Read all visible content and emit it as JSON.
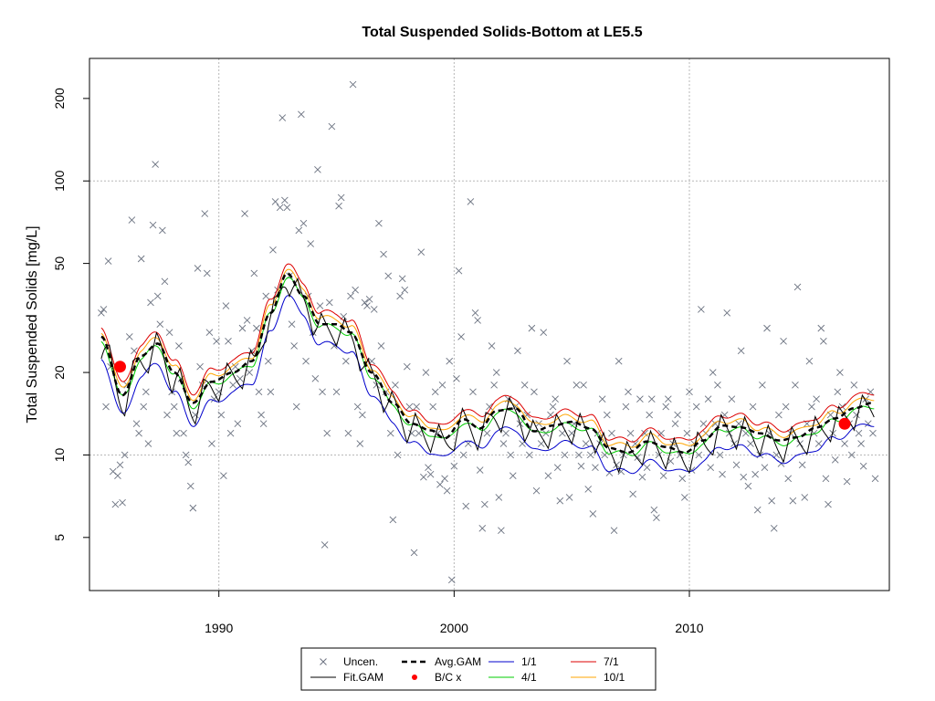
{
  "chart_data": {
    "type": "scatter",
    "title": "Total Suspended Solids-Bottom at LE5.5",
    "xlabel": "",
    "ylabel": "Total Suspended Solids [mg/L]",
    "y_scale": "log",
    "xlim": [
      1984.5,
      2018.5
    ],
    "ylim": [
      3.2,
      280
    ],
    "x_ticks": [
      1990,
      2000,
      2010
    ],
    "x_tick_labels": [
      "1990",
      "2000",
      "2010"
    ],
    "y_ticks": [
      5,
      10,
      20,
      50,
      100,
      200
    ],
    "y_tick_labels": [
      "5",
      "10",
      "20",
      "50",
      "100",
      "200"
    ],
    "grid": true,
    "legend_position": "bottom",
    "legend": [
      {
        "label": "Uncen.",
        "kind": "x-marker",
        "color": "#6b7280"
      },
      {
        "label": "Fit.GAM",
        "kind": "line",
        "color": "#000000"
      },
      {
        "label": "Avg.GAM",
        "kind": "dashed-line",
        "color": "#000000"
      },
      {
        "label": "B/C x",
        "kind": "dot",
        "color": "#ff0000"
      },
      {
        "label": "1/1",
        "kind": "line",
        "color": "#0000cc"
      },
      {
        "label": "4/1",
        "kind": "line",
        "color": "#00cc00"
      },
      {
        "label": "7/1",
        "kind": "line",
        "color": "#dd0000"
      },
      {
        "label": "10/1",
        "kind": "line",
        "color": "#ffa500"
      }
    ],
    "bc_points": [
      {
        "x": 1985.8,
        "y": 21
      },
      {
        "x": 2016.6,
        "y": 13
      }
    ],
    "observations": [
      [
        1985.0,
        33
      ],
      [
        1985.1,
        34
      ],
      [
        1985.2,
        15
      ],
      [
        1985.3,
        51
      ],
      [
        1985.4,
        21
      ],
      [
        1985.5,
        8.7
      ],
      [
        1985.6,
        6.6
      ],
      [
        1985.7,
        8.4
      ],
      [
        1985.8,
        9.2
      ],
      [
        1985.9,
        6.7
      ],
      [
        1986.0,
        10
      ],
      [
        1986.1,
        18
      ],
      [
        1986.2,
        27
      ],
      [
        1986.3,
        72
      ],
      [
        1986.4,
        24
      ],
      [
        1986.5,
        13
      ],
      [
        1986.6,
        12
      ],
      [
        1986.7,
        52
      ],
      [
        1986.8,
        15
      ],
      [
        1986.9,
        17
      ],
      [
        1987.0,
        11
      ],
      [
        1987.1,
        36
      ],
      [
        1987.2,
        69
      ],
      [
        1987.3,
        115
      ],
      [
        1987.4,
        38
      ],
      [
        1987.5,
        30
      ],
      [
        1987.6,
        66
      ],
      [
        1987.7,
        43
      ],
      [
        1987.8,
        14
      ],
      [
        1987.9,
        28
      ],
      [
        1988.0,
        17
      ],
      [
        1988.1,
        15
      ],
      [
        1988.2,
        12
      ],
      [
        1988.3,
        25
      ],
      [
        1988.4,
        19
      ],
      [
        1988.5,
        12
      ],
      [
        1988.6,
        10
      ],
      [
        1988.7,
        9.4
      ],
      [
        1988.8,
        7.7
      ],
      [
        1988.9,
        6.4
      ],
      [
        1989.0,
        14
      ],
      [
        1989.1,
        48
      ],
      [
        1989.2,
        21
      ],
      [
        1989.3,
        18
      ],
      [
        1989.4,
        76
      ],
      [
        1989.5,
        46
      ],
      [
        1989.6,
        28
      ],
      [
        1989.7,
        11
      ],
      [
        1989.8,
        16
      ],
      [
        1989.9,
        26
      ],
      [
        1990.0,
        17
      ],
      [
        1990.1,
        14
      ],
      [
        1990.2,
        8.4
      ],
      [
        1990.3,
        35
      ],
      [
        1990.4,
        26
      ],
      [
        1990.5,
        12
      ],
      [
        1990.6,
        18
      ],
      [
        1990.7,
        21
      ],
      [
        1990.8,
        13
      ],
      [
        1990.9,
        19
      ],
      [
        1991.0,
        29
      ],
      [
        1991.1,
        76
      ],
      [
        1991.2,
        31
      ],
      [
        1991.3,
        20
      ],
      [
        1991.4,
        24
      ],
      [
        1991.5,
        46
      ],
      [
        1991.6,
        29
      ],
      [
        1991.7,
        17
      ],
      [
        1991.8,
        14
      ],
      [
        1991.9,
        13
      ],
      [
        1992.0,
        38
      ],
      [
        1992.1,
        22
      ],
      [
        1992.2,
        17
      ],
      [
        1992.3,
        56
      ],
      [
        1992.4,
        84
      ],
      [
        1992.5,
        40
      ],
      [
        1992.6,
        80
      ],
      [
        1992.7,
        170
      ],
      [
        1992.8,
        85
      ],
      [
        1992.9,
        80
      ],
      [
        1993.0,
        45
      ],
      [
        1993.1,
        30
      ],
      [
        1993.2,
        25
      ],
      [
        1993.3,
        15
      ],
      [
        1993.4,
        66
      ],
      [
        1993.5,
        175
      ],
      [
        1993.6,
        70
      ],
      [
        1993.7,
        22
      ],
      [
        1993.8,
        38
      ],
      [
        1993.9,
        59
      ],
      [
        1994.0,
        28
      ],
      [
        1994.1,
        19
      ],
      [
        1994.2,
        110
      ],
      [
        1994.3,
        35
      ],
      [
        1994.4,
        17
      ],
      [
        1994.5,
        4.7
      ],
      [
        1994.6,
        12
      ],
      [
        1994.7,
        36
      ],
      [
        1994.8,
        158
      ],
      [
        1994.9,
        25
      ],
      [
        1995.0,
        17
      ],
      [
        1995.1,
        81
      ],
      [
        1995.2,
        87
      ],
      [
        1995.3,
        32
      ],
      [
        1995.4,
        22
      ],
      [
        1995.5,
        12
      ],
      [
        1995.6,
        38
      ],
      [
        1995.7,
        225
      ],
      [
        1995.8,
        40
      ],
      [
        1995.9,
        15
      ],
      [
        1996.0,
        11
      ],
      [
        1996.1,
        14
      ],
      [
        1996.2,
        36
      ],
      [
        1996.3,
        35
      ],
      [
        1996.4,
        37
      ],
      [
        1996.5,
        22
      ],
      [
        1996.6,
        34
      ],
      [
        1996.7,
        18
      ],
      [
        1996.8,
        70
      ],
      [
        1996.9,
        25
      ],
      [
        1997.0,
        54
      ],
      [
        1997.1,
        17
      ],
      [
        1997.2,
        45
      ],
      [
        1997.3,
        12
      ],
      [
        1997.4,
        5.8
      ],
      [
        1997.5,
        18
      ],
      [
        1997.6,
        10
      ],
      [
        1997.7,
        38
      ],
      [
        1997.8,
        44
      ],
      [
        1997.9,
        40
      ],
      [
        1998.0,
        21
      ],
      [
        1998.1,
        15
      ],
      [
        1998.2,
        12
      ],
      [
        1998.3,
        4.4
      ],
      [
        1998.4,
        15
      ],
      [
        1998.5,
        12
      ],
      [
        1998.6,
        55
      ],
      [
        1998.7,
        8.3
      ],
      [
        1998.8,
        20
      ],
      [
        1998.9,
        9
      ],
      [
        1999.0,
        8.5
      ],
      [
        1999.1,
        15
      ],
      [
        1999.2,
        17
      ],
      [
        1999.3,
        12
      ],
      [
        1999.4,
        7.8
      ],
      [
        1999.5,
        18
      ],
      [
        1999.6,
        8.2
      ],
      [
        1999.7,
        7.4
      ],
      [
        1999.8,
        22
      ],
      [
        1999.9,
        3.5
      ],
      [
        2000.0,
        9.1
      ],
      [
        2000.1,
        19
      ],
      [
        2000.2,
        47
      ],
      [
        2000.3,
        27
      ],
      [
        2000.4,
        10
      ],
      [
        2000.5,
        6.5
      ],
      [
        2000.6,
        11
      ],
      [
        2000.7,
        84
      ],
      [
        2000.8,
        17
      ],
      [
        2000.9,
        33
      ],
      [
        2001.0,
        31
      ],
      [
        2001.1,
        8.8
      ],
      [
        2001.2,
        5.4
      ],
      [
        2001.3,
        6.6
      ],
      [
        2001.4,
        12
      ],
      [
        2001.5,
        15
      ],
      [
        2001.6,
        25
      ],
      [
        2001.7,
        18
      ],
      [
        2001.8,
        20
      ],
      [
        2001.9,
        7
      ],
      [
        2002.0,
        5.3
      ],
      [
        2002.1,
        11
      ],
      [
        2002.2,
        12
      ],
      [
        2002.3,
        16
      ],
      [
        2002.4,
        10
      ],
      [
        2002.5,
        8.4
      ],
      [
        2002.6,
        15
      ],
      [
        2002.7,
        24
      ],
      [
        2002.8,
        13
      ],
      [
        2002.9,
        11
      ],
      [
        2003.0,
        18
      ],
      [
        2003.1,
        14
      ],
      [
        2003.2,
        10
      ],
      [
        2003.3,
        29
      ],
      [
        2003.4,
        17
      ],
      [
        2003.5,
        7.4
      ],
      [
        2003.6,
        13
      ],
      [
        2003.7,
        11
      ],
      [
        2003.8,
        28
      ],
      [
        2003.9,
        12
      ],
      [
        2004.0,
        8.4
      ],
      [
        2004.1,
        14
      ],
      [
        2004.2,
        15
      ],
      [
        2004.3,
        16
      ],
      [
        2004.4,
        9
      ],
      [
        2004.5,
        6.8
      ],
      [
        2004.6,
        12
      ],
      [
        2004.7,
        10
      ],
      [
        2004.8,
        22
      ],
      [
        2004.9,
        7
      ],
      [
        2005.0,
        12
      ],
      [
        2005.1,
        13
      ],
      [
        2005.2,
        18
      ],
      [
        2005.3,
        10
      ],
      [
        2005.4,
        9.1
      ],
      [
        2005.5,
        18
      ],
      [
        2005.6,
        11
      ],
      [
        2005.7,
        7.5
      ],
      [
        2005.8,
        10
      ],
      [
        2005.9,
        6.1
      ],
      [
        2006.0,
        9
      ],
      [
        2006.1,
        12
      ],
      [
        2006.2,
        11
      ],
      [
        2006.3,
        16
      ],
      [
        2006.4,
        10
      ],
      [
        2006.5,
        14
      ],
      [
        2006.6,
        8.6
      ],
      [
        2006.7,
        12
      ],
      [
        2006.8,
        5.3
      ],
      [
        2006.9,
        9.2
      ],
      [
        2007.0,
        22
      ],
      [
        2007.1,
        8.7
      ],
      [
        2007.2,
        10
      ],
      [
        2007.3,
        15
      ],
      [
        2007.4,
        17
      ],
      [
        2007.5,
        12
      ],
      [
        2007.6,
        7.2
      ],
      [
        2007.7,
        11
      ],
      [
        2007.8,
        9.8
      ],
      [
        2007.9,
        16
      ],
      [
        2008.0,
        8.3
      ],
      [
        2008.1,
        12
      ],
      [
        2008.2,
        9
      ],
      [
        2008.3,
        14
      ],
      [
        2008.4,
        16
      ],
      [
        2008.5,
        6.3
      ],
      [
        2008.6,
        5.9
      ],
      [
        2008.7,
        10
      ],
      [
        2008.8,
        12
      ],
      [
        2008.9,
        8.4
      ],
      [
        2009.0,
        15
      ],
      [
        2009.1,
        16
      ],
      [
        2009.2,
        9.5
      ],
      [
        2009.3,
        11
      ],
      [
        2009.4,
        13
      ],
      [
        2009.5,
        14
      ],
      [
        2009.6,
        10
      ],
      [
        2009.7,
        8.2
      ],
      [
        2009.8,
        7
      ],
      [
        2009.9,
        12
      ],
      [
        2010.0,
        17
      ],
      [
        2010.1,
        8.8
      ],
      [
        2010.2,
        11
      ],
      [
        2010.3,
        15
      ],
      [
        2010.4,
        10
      ],
      [
        2010.5,
        34
      ],
      [
        2010.6,
        13
      ],
      [
        2010.7,
        12
      ],
      [
        2010.8,
        16
      ],
      [
        2010.9,
        9
      ],
      [
        2011.0,
        20
      ],
      [
        2011.1,
        13
      ],
      [
        2011.2,
        18
      ],
      [
        2011.3,
        10
      ],
      [
        2011.4,
        8.5
      ],
      [
        2011.5,
        14
      ],
      [
        2011.6,
        33
      ],
      [
        2011.7,
        12
      ],
      [
        2011.8,
        16
      ],
      [
        2011.9,
        11
      ],
      [
        2012.0,
        9.2
      ],
      [
        2012.1,
        13
      ],
      [
        2012.2,
        24
      ],
      [
        2012.3,
        8.3
      ],
      [
        2012.4,
        12
      ],
      [
        2012.5,
        7.7
      ],
      [
        2012.6,
        11
      ],
      [
        2012.7,
        15
      ],
      [
        2012.8,
        8.5
      ],
      [
        2012.9,
        6.3
      ],
      [
        2013.0,
        10
      ],
      [
        2013.1,
        18
      ],
      [
        2013.2,
        9
      ],
      [
        2013.3,
        29
      ],
      [
        2013.4,
        12
      ],
      [
        2013.5,
        6.8
      ],
      [
        2013.6,
        5.4
      ],
      [
        2013.7,
        10
      ],
      [
        2013.8,
        14
      ],
      [
        2013.9,
        9.3
      ],
      [
        2014.0,
        26
      ],
      [
        2014.1,
        15
      ],
      [
        2014.2,
        8.2
      ],
      [
        2014.3,
        12
      ],
      [
        2014.4,
        6.8
      ],
      [
        2014.5,
        18
      ],
      [
        2014.6,
        41
      ],
      [
        2014.7,
        11
      ],
      [
        2014.8,
        9.2
      ],
      [
        2014.9,
        7
      ],
      [
        2015.0,
        13
      ],
      [
        2015.1,
        22
      ],
      [
        2015.2,
        15
      ],
      [
        2015.3,
        12
      ],
      [
        2015.4,
        16
      ],
      [
        2015.5,
        11
      ],
      [
        2015.6,
        29
      ],
      [
        2015.7,
        26
      ],
      [
        2015.8,
        8.2
      ],
      [
        2015.9,
        6.6
      ],
      [
        2016.0,
        14
      ],
      [
        2016.1,
        12
      ],
      [
        2016.2,
        9.6
      ],
      [
        2016.3,
        17
      ],
      [
        2016.4,
        20
      ],
      [
        2016.5,
        15
      ],
      [
        2016.6,
        11
      ],
      [
        2016.7,
        8
      ],
      [
        2016.8,
        13
      ],
      [
        2016.9,
        10
      ],
      [
        2017.0,
        18
      ],
      [
        2017.1,
        14
      ],
      [
        2017.2,
        12
      ],
      [
        2017.3,
        11
      ],
      [
        2017.4,
        9.1
      ],
      [
        2017.5,
        16
      ],
      [
        2017.6,
        13
      ],
      [
        2017.7,
        17
      ],
      [
        2017.8,
        12
      ],
      [
        2017.9,
        8.2
      ]
    ]
  }
}
